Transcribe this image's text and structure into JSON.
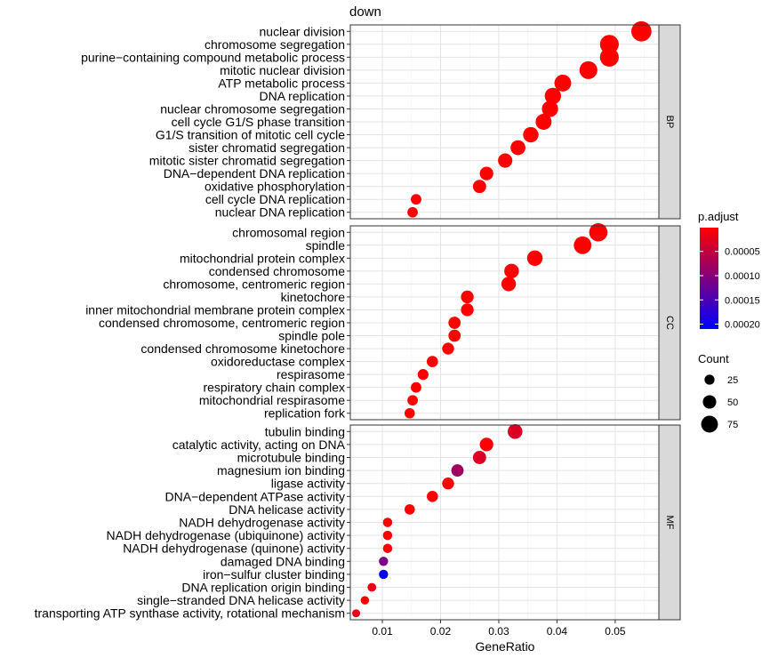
{
  "chart_data": {
    "type": "scatter",
    "title": "down",
    "xlabel": "GeneRatio",
    "ylabel": "",
    "xlim": [
      0.0045,
      0.0575
    ],
    "x_ticks": [
      0.01,
      0.02,
      0.03,
      0.04,
      0.05
    ],
    "x_tick_labels": [
      "0.01",
      "0.02",
      "0.03",
      "0.04",
      "0.05"
    ],
    "grid": true,
    "legend_position": "right",
    "color_legend": {
      "title": "p.adjust",
      "min": 1e-06,
      "max": 0.00021,
      "low_color": "#ff0000",
      "high_color": "#0000ff",
      "ticks": [
        5e-05,
        0.0001,
        0.00015,
        0.0002
      ],
      "tick_labels": [
        "0.00005",
        "0.00010",
        "0.00015",
        "0.00020"
      ]
    },
    "size_legend": {
      "title": "Count",
      "values": [
        25,
        50,
        75
      ],
      "labels": [
        "25",
        "50",
        "75"
      ]
    },
    "panels": [
      {
        "name": "BP",
        "terms": [
          {
            "term": "nuclear division",
            "x": 0.0545,
            "count": 100,
            "p_adjust": 1e-06
          },
          {
            "term": "chromosome segregation",
            "x": 0.049,
            "count": 90,
            "p_adjust": 1e-06
          },
          {
            "term": "purine−containing compound metabolic process",
            "x": 0.049,
            "count": 90,
            "p_adjust": 1e-06
          },
          {
            "term": "mitotic nuclear division",
            "x": 0.0454,
            "count": 83,
            "p_adjust": 1e-06
          },
          {
            "term": "ATP metabolic process",
            "x": 0.041,
            "count": 75,
            "p_adjust": 1e-06
          },
          {
            "term": "DNA replication",
            "x": 0.0393,
            "count": 72,
            "p_adjust": 1e-06
          },
          {
            "term": "nuclear chromosome segregation",
            "x": 0.0388,
            "count": 71,
            "p_adjust": 1e-06
          },
          {
            "term": "cell cycle G1/S phase transition",
            "x": 0.0377,
            "count": 69,
            "p_adjust": 1e-06
          },
          {
            "term": "G1/S transition of mitotic cell cycle",
            "x": 0.0355,
            "count": 65,
            "p_adjust": 1e-06
          },
          {
            "term": "sister chromatid segregation",
            "x": 0.0333,
            "count": 61,
            "p_adjust": 1e-06
          },
          {
            "term": "mitotic sister chromatid segregation",
            "x": 0.0311,
            "count": 57,
            "p_adjust": 1e-06
          },
          {
            "term": "DNA−dependent DNA replication",
            "x": 0.0279,
            "count": 51,
            "p_adjust": 1e-06
          },
          {
            "term": "oxidative phosphorylation",
            "x": 0.0267,
            "count": 49,
            "p_adjust": 1e-06
          },
          {
            "term": "cell cycle DNA replication",
            "x": 0.0158,
            "count": 29,
            "p_adjust": 1e-06
          },
          {
            "term": "nuclear DNA replication",
            "x": 0.0152,
            "count": 28,
            "p_adjust": 1e-06
          }
        ]
      },
      {
        "name": "CC",
        "terms": [
          {
            "term": "chromosomal region",
            "x": 0.0471,
            "count": 86,
            "p_adjust": 1e-06
          },
          {
            "term": "spindle",
            "x": 0.0444,
            "count": 81,
            "p_adjust": 1e-06
          },
          {
            "term": "mitochondrial protein complex",
            "x": 0.0362,
            "count": 66,
            "p_adjust": 1e-06
          },
          {
            "term": "condensed chromosome",
            "x": 0.0322,
            "count": 59,
            "p_adjust": 1e-06
          },
          {
            "term": "chromosome, centromeric region",
            "x": 0.0317,
            "count": 58,
            "p_adjust": 1e-06
          },
          {
            "term": "kinetochore",
            "x": 0.0246,
            "count": 45,
            "p_adjust": 1e-06
          },
          {
            "term": "inner mitochondrial membrane protein complex",
            "x": 0.0246,
            "count": 45,
            "p_adjust": 1e-06
          },
          {
            "term": "condensed chromosome, centromeric region",
            "x": 0.0224,
            "count": 41,
            "p_adjust": 1e-06
          },
          {
            "term": "spindle pole",
            "x": 0.0224,
            "count": 41,
            "p_adjust": 1e-06
          },
          {
            "term": "condensed chromosome kinetochore",
            "x": 0.0213,
            "count": 39,
            "p_adjust": 1e-06
          },
          {
            "term": "oxidoreductase complex",
            "x": 0.0186,
            "count": 34,
            "p_adjust": 1e-06
          },
          {
            "term": "respirasome",
            "x": 0.017,
            "count": 31,
            "p_adjust": 1e-06
          },
          {
            "term": "respiratory chain complex",
            "x": 0.0158,
            "count": 29,
            "p_adjust": 1e-06
          },
          {
            "term": "mitochondrial respirasome",
            "x": 0.0152,
            "count": 28,
            "p_adjust": 1e-06
          },
          {
            "term": "replication fork",
            "x": 0.0147,
            "count": 27,
            "p_adjust": 1e-06
          }
        ]
      },
      {
        "name": "MF",
        "terms": [
          {
            "term": "tubulin binding",
            "x": 0.0328,
            "count": 60,
            "p_adjust": 3e-05
          },
          {
            "term": "catalytic activity, acting on DNA",
            "x": 0.0279,
            "count": 51,
            "p_adjust": 3e-06
          },
          {
            "term": "microtubule binding",
            "x": 0.0267,
            "count": 49,
            "p_adjust": 3e-05
          },
          {
            "term": "magnesium ion binding",
            "x": 0.0229,
            "count": 42,
            "p_adjust": 8e-05
          },
          {
            "term": "ligase activity",
            "x": 0.0213,
            "count": 39,
            "p_adjust": 3e-06
          },
          {
            "term": "DNA−dependent ATPase activity",
            "x": 0.0186,
            "count": 34,
            "p_adjust": 1e-06
          },
          {
            "term": "DNA helicase activity",
            "x": 0.0147,
            "count": 27,
            "p_adjust": 1e-06
          },
          {
            "term": "NADH dehydrogenase activity",
            "x": 0.0109,
            "count": 20,
            "p_adjust": 3e-06
          },
          {
            "term": "NADH dehydrogenase (ubiquinone) activity",
            "x": 0.0109,
            "count": 20,
            "p_adjust": 3e-06
          },
          {
            "term": "NADH dehydrogenase (quinone) activity",
            "x": 0.0109,
            "count": 20,
            "p_adjust": 3e-06
          },
          {
            "term": "damaged DNA binding",
            "x": 0.0102,
            "count": 19,
            "p_adjust": 0.00011
          },
          {
            "term": "iron−sulfur cluster binding",
            "x": 0.0102,
            "count": 19,
            "p_adjust": 0.00021
          },
          {
            "term": "DNA replication origin binding",
            "x": 0.0082,
            "count": 15,
            "p_adjust": 2e-05
          },
          {
            "term": "single−stranded DNA helicase activity",
            "x": 0.007,
            "count": 13,
            "p_adjust": 3e-06
          },
          {
            "term": "transporting ATP synthase activity, rotational mechanism",
            "x": 0.0055,
            "count": 10,
            "p_adjust": 2e-05
          }
        ]
      }
    ]
  }
}
